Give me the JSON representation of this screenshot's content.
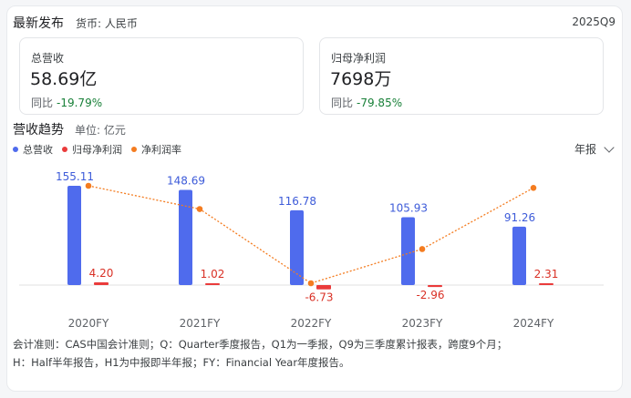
{
  "header": {
    "title": "最新发布",
    "currency": "货币: 人民币",
    "period": "2025Q9"
  },
  "metrics": [
    {
      "label": "总营收",
      "value": "58.69亿",
      "yoy_label": "同比",
      "yoy": "-19.79%"
    },
    {
      "label": "归母净利润",
      "value": "7698万",
      "yoy_label": "同比",
      "yoy": "-79.85%"
    }
  ],
  "trend": {
    "title": "营收趋势",
    "unit": "单位: 亿元",
    "period_select": "年报"
  },
  "colors": {
    "revenue": "#4f6bed",
    "net_profit": "#ea3b3b",
    "margin": "#f47c20",
    "yoy_positive": "#188038"
  },
  "chart_data": {
    "type": "bar",
    "categories": [
      "2020FY",
      "2021FY",
      "2022FY",
      "2023FY",
      "2024FY"
    ],
    "series": [
      {
        "name": "总营收",
        "kind": "bar",
        "values": [
          155.11,
          148.69,
          116.78,
          105.93,
          91.26
        ],
        "labels": [
          "155.11",
          "148.69",
          "116.78",
          "105.93",
          "91.26"
        ]
      },
      {
        "name": "归母净利润",
        "kind": "bar",
        "values": [
          4.2,
          1.02,
          -6.73,
          -2.96,
          2.31
        ],
        "labels": [
          "4.20",
          "1.02",
          "-6.73",
          "-2.96",
          "2.31"
        ]
      },
      {
        "name": "净利润率",
        "kind": "line",
        "values": [
          2.71,
          0.69,
          -5.76,
          -2.79,
          2.53
        ]
      }
    ],
    "ylim": [
      -10,
      165
    ],
    "grid": false,
    "legend_position": "top-left"
  },
  "footnote": {
    "line1": "会计准则：CAS中国会计准则；Q：Quarter季度报告，Q1为一季报，Q9为三季度累计报表，跨度9个月；",
    "line2": "H：Half半年报告，H1为中报即半年报；FY：Financial Year年度报告。"
  }
}
